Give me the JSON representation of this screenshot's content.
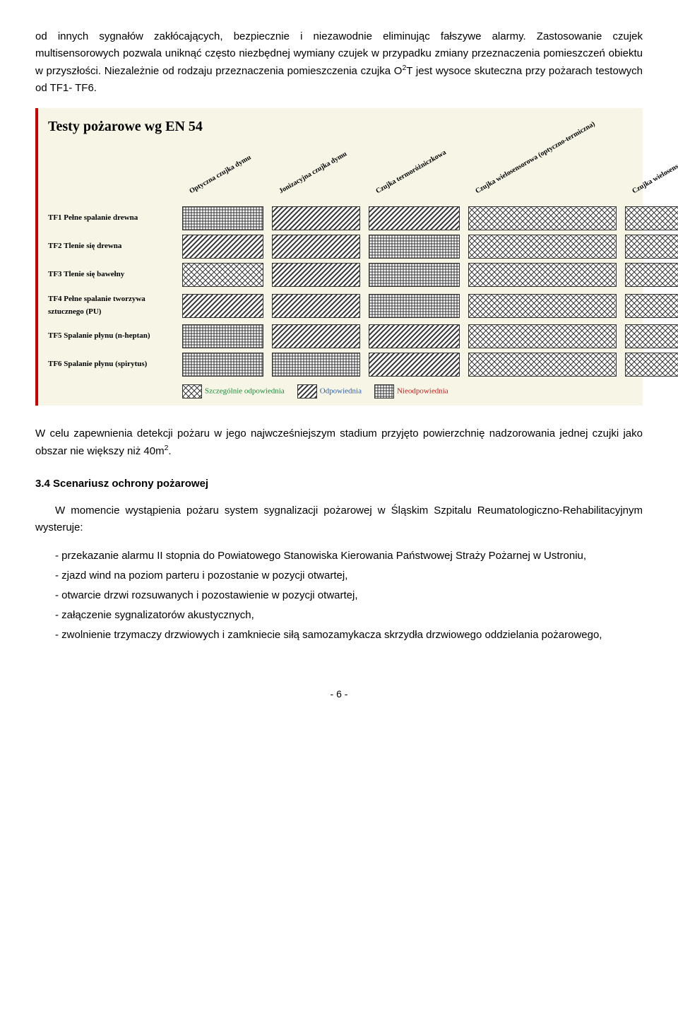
{
  "para1_a": "od innych sygnałów zakłócających, bezpiecznie i niezawodnie eliminując fałszywe alarmy. Zastosowanie czujek multisensorowych pozwala uniknąć często niezbędnej wymiany czujek w przypadku zmiany przeznaczenia pomieszczeń obiektu w przyszłości. Niezależnie od rodzaju przeznaczenia pomieszczenia czujka O",
  "para1_b": "T jest wysoce skuteczna przy pożarach testowych od TF1- TF6.",
  "table": {
    "title": "Testy pożarowe wg EN 54",
    "columns": [
      "Optyczna czujka dymu",
      "Jonizacyjna czujka dymu",
      "Czujka termoróżniczkowa",
      "Czujka wielosensorowa\n(optyczno-termiczna)",
      "Czujka wielosensorowa\n(optyczno-termiczno-jonizacyjna)"
    ],
    "rows": [
      {
        "label": "TF1 Pełne spalanie drewna",
        "cells": [
          "c",
          "b",
          "b",
          "a",
          "a"
        ]
      },
      {
        "label": "TF2 Tlenie się drewna",
        "cells": [
          "b",
          "b",
          "c",
          "a",
          "a"
        ]
      },
      {
        "label": "TF3 Tlenie się bawełny",
        "cells": [
          "a",
          "b",
          "c",
          "a",
          "a"
        ]
      },
      {
        "label": "TF4 Pełne spalanie tworzywa sztucznego (PU)",
        "cells": [
          "b",
          "b",
          "c",
          "a",
          "a"
        ]
      },
      {
        "label": "TF5 Spalanie płynu (n-heptan)",
        "cells": [
          "c",
          "b",
          "b",
          "a",
          "a"
        ]
      },
      {
        "label": "TF6 Spalanie płynu (spirytus)",
        "cells": [
          "c",
          "c",
          "b",
          "a",
          "a"
        ]
      }
    ],
    "legend": {
      "a": "Szczególnie odpowiednia",
      "b": "Odpowiednia",
      "c": "Nieodpowiednia"
    },
    "colors": {
      "bg": "#f7f6e6",
      "border_left": "#c00000",
      "cell_border": "#333333",
      "legend_a": "#1a8a3a",
      "legend_b": "#2a5ea8",
      "legend_c": "#c02020"
    },
    "patterns": {
      "a": "crosshatch",
      "b": "diagonal",
      "c": "grid"
    }
  },
  "para2_a": "W celu zapewnienia detekcji pożaru w jego najwcześniejszym stadium przyjęto powierzchnię nadzorowania jednej czujki jako obszar nie większy niż 40m",
  "para2_b": ".",
  "section_heading": "3.4 Scenariusz ochrony pożarowej",
  "para3": "W momencie wystąpienia pożaru system sygnalizacji pożarowej w Śląskim Szpitalu Reumatologiczno-Rehabilitacyjnym  wysteruje:",
  "items": [
    "- przekazanie alarmu II stopnia do Powiatowego Stanowiska Kierowania Państwowej Straży Pożarnej w Ustroniu,",
    "- zjazd wind na poziom parteru i pozostanie w pozycji otwartej,",
    "- otwarcie drzwi rozsuwanych i pozostawienie w pozycji otwartej,",
    "- załączenie  sygnalizatorów akustycznych,",
    "- zwolnienie trzymaczy drzwiowych i zamkniecie siłą samozamykacza skrzydła drzwiowego oddzielania pożarowego,"
  ],
  "page_number": "- 6 -"
}
